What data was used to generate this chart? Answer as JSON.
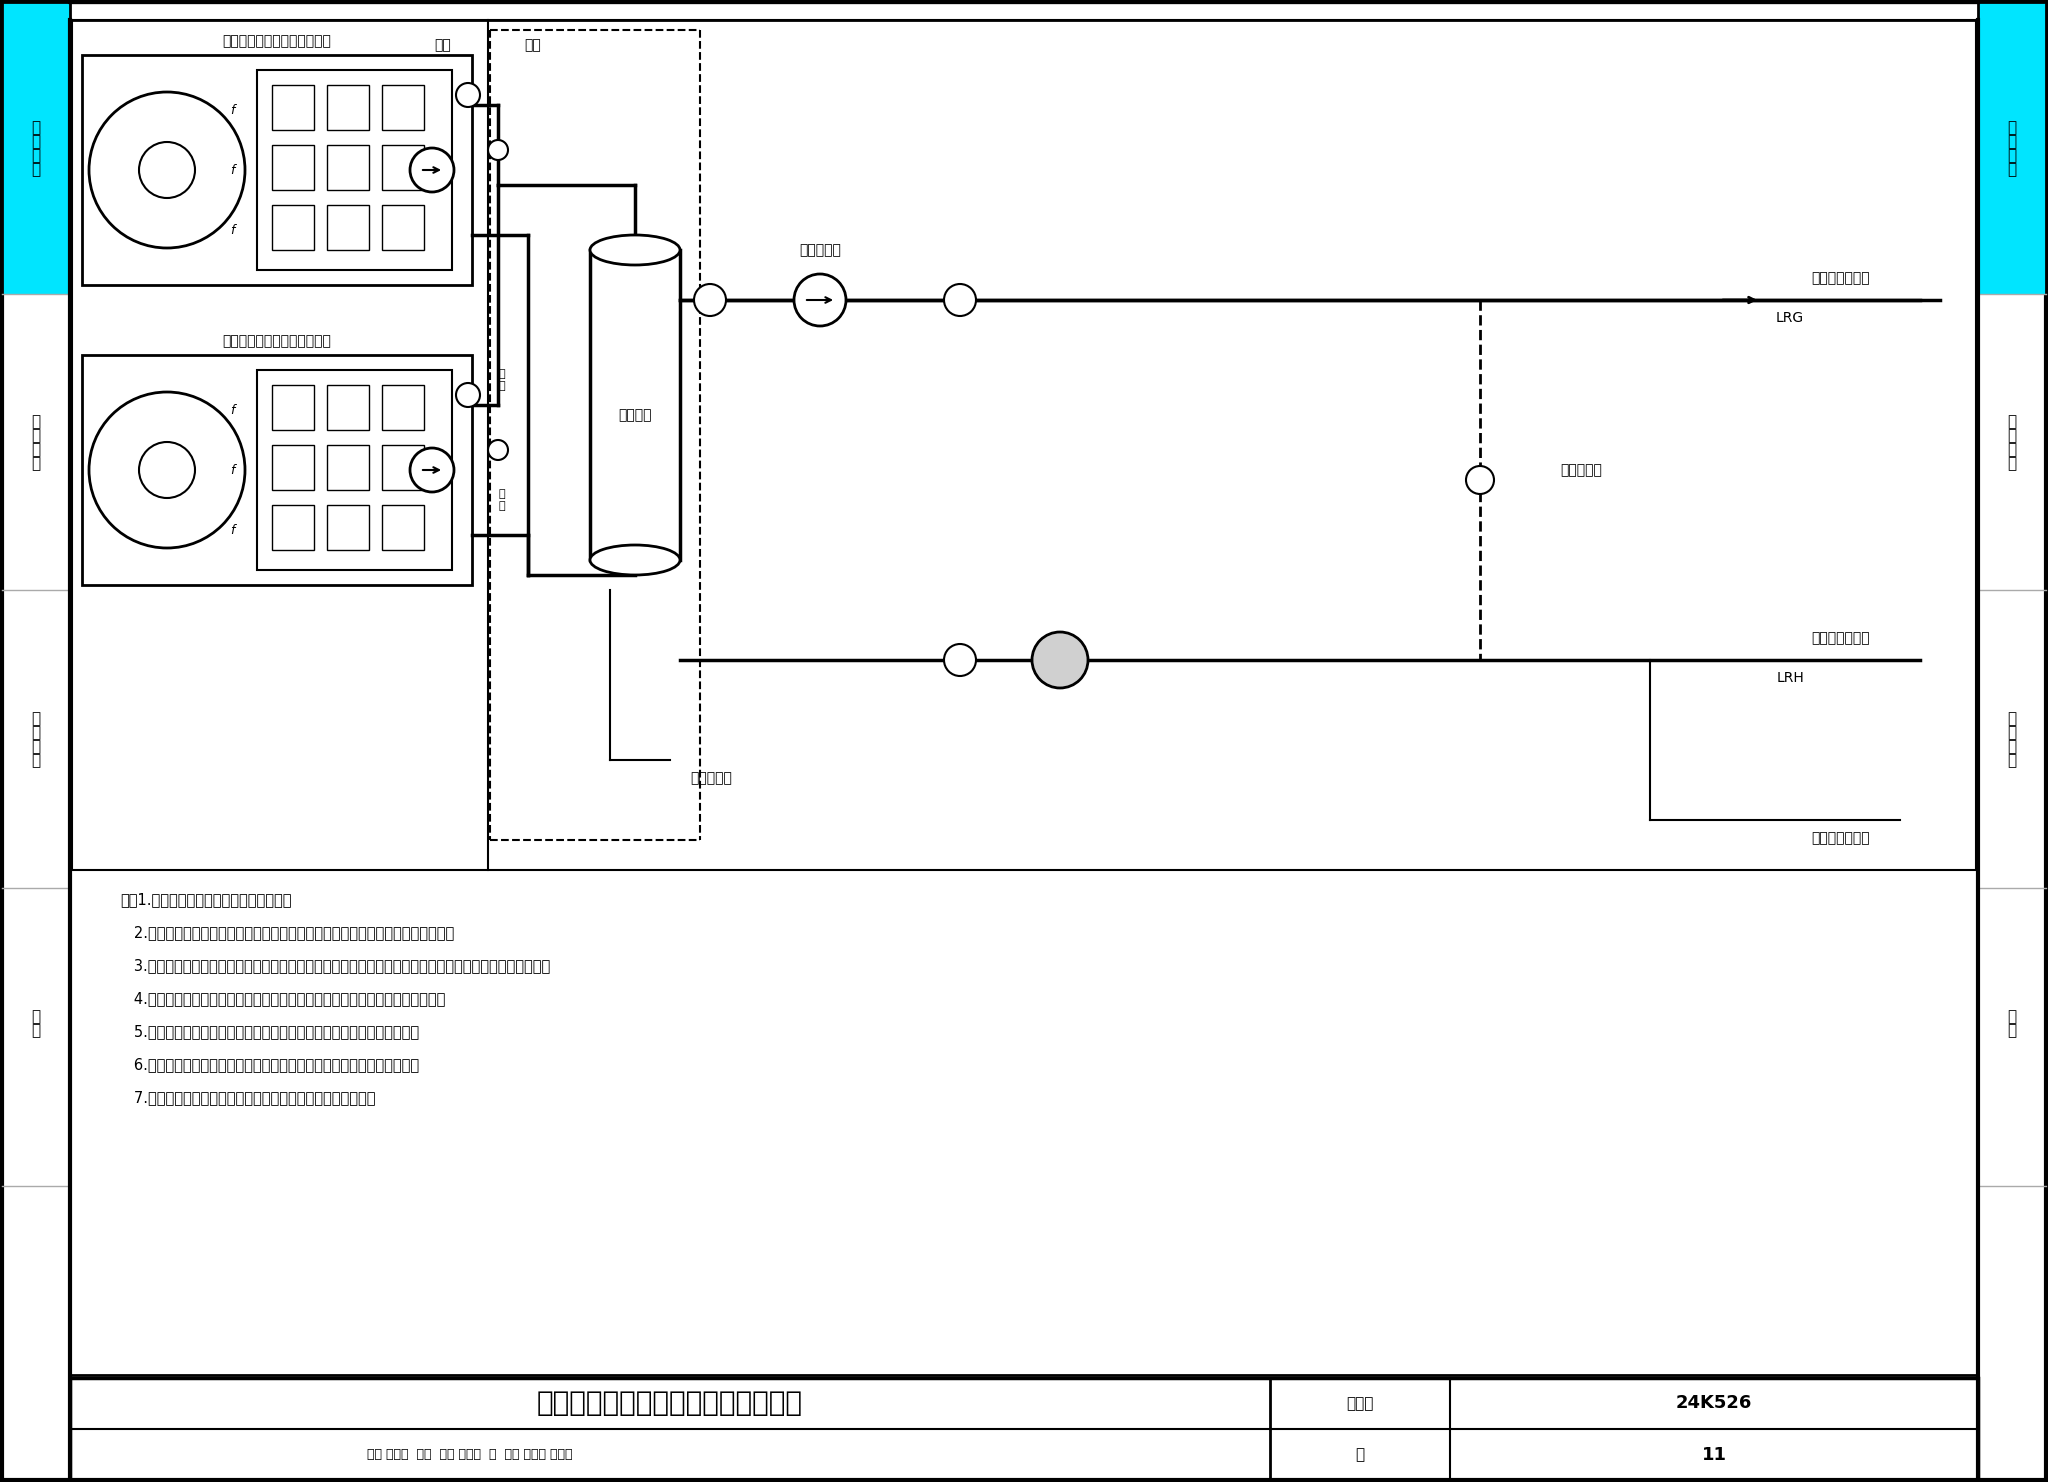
{
  "page_bg": "#ffffff",
  "cyan_color": "#00e5ff",
  "border_color": "#000000",
  "left_sidebar_texts": [
    "系\n统\n设\n计",
    "施\n工\n安\n装",
    "工\n程\n实\n例",
    "附\n录"
  ],
  "right_sidebar_texts": [
    "系\n统\n设\n计",
    "施\n工\n安\n装",
    "工\n程\n实\n例",
    "附\n录"
  ],
  "title_main": "整体式机组两联供二级泵系统原理图",
  "title_sub_left": "图集号",
  "title_sub_right": "24K526",
  "page_label": "页",
  "page_num": "11",
  "review_row": "审核 董大鹏  长加  校对 吕东彦  浙  设计 邓有源 竹竹纸",
  "diagram_title1": "热泵机组（内置一级循环泵）",
  "diagram_title2": "热泵机组（内置一级循环泵）",
  "label_outdoor": "室外",
  "label_indoor": "室内",
  "label_buffer_tank": "缓冲水箱",
  "label_secondary_pump": "二级循环泵",
  "label_drain": "接排水系统",
  "label_supply_pipe": "接末端供水干管",
  "label_return_pipe": "接末端回水干管",
  "label_domestic_water": "接生活给水系统",
  "label_diff_bypass": "压差旁通阀",
  "label_LRG": "LRG",
  "label_LRH": "LRH",
  "notes": [
    "注：1.本页适用于整体式机组两联供系统。",
    "   2.本图一级循环泵为热泵机组内置泵，设计人员可根据工程情况选用外置循环泵。",
    "   3.机组（内置一级循环泵）设置在室外，缓冲水箱、循环水泵、膨胀罐等附属设备及管路、配件设在室内。",
    "   4.末端可采用风机盘管供暖（冷）、地面辐射供暖、低水温散热器供暖等设备。",
    "   5.设计人员根据系统水容量、热泵机组融霜功能确定是否设置缓冲水箱。",
    "   6.本图选用两台热泵机组，设计人员可根据工程情况选择热泵机组数量。",
    "   7.多台热泵机组供暖（冷）时，宜优先选用同型号机组并联。"
  ]
}
